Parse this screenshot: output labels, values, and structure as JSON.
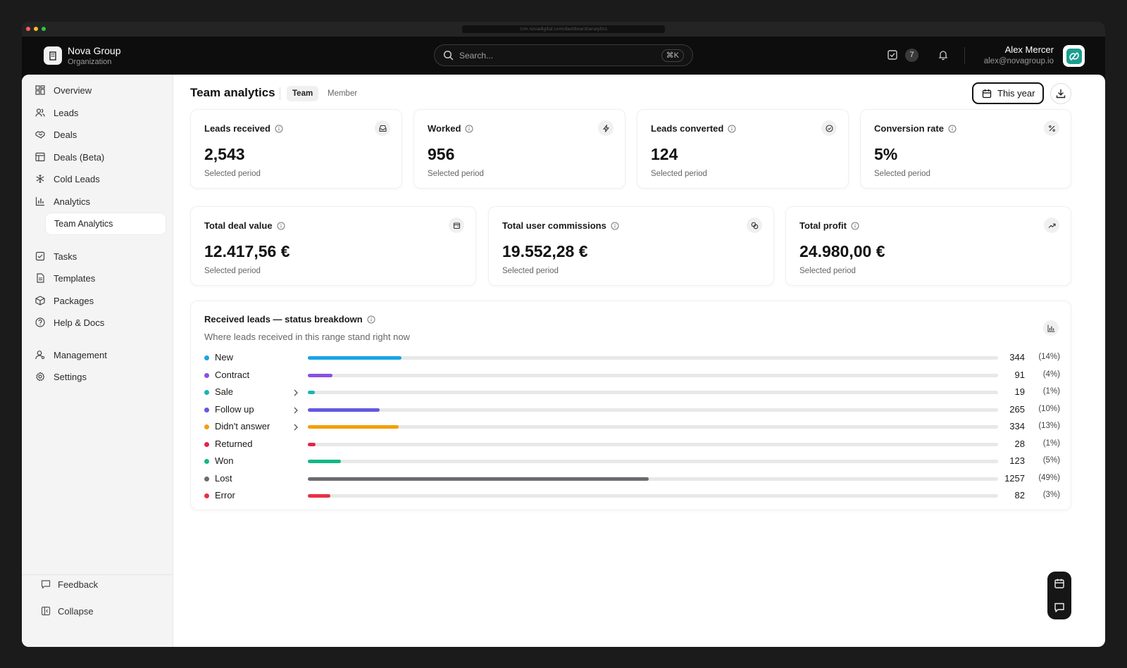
{
  "browser": {
    "url": "crm.novadigital.com/dashboard/analytics"
  },
  "org": {
    "name": "Nova Group",
    "subtitle": "Organization"
  },
  "search": {
    "placeholder": "Search...",
    "shortcut": "⌘K"
  },
  "header": {
    "task_count": "7"
  },
  "user": {
    "name": "Alex Mercer",
    "email": "alex@novagroup.io"
  },
  "sidebar": {
    "items": [
      {
        "label": "Overview",
        "icon": "grid-icon"
      },
      {
        "label": "Leads",
        "icon": "users-icon"
      },
      {
        "label": "Deals",
        "icon": "handshake-icon"
      },
      {
        "label": "Deals (Beta)",
        "icon": "table-icon"
      },
      {
        "label": "Cold Leads",
        "icon": "snowflake-icon"
      },
      {
        "label": "Analytics",
        "icon": "bar-chart-icon"
      },
      {
        "label": "Team Analytics",
        "icon": ""
      },
      {
        "label": "Tasks",
        "icon": "check-square-icon"
      },
      {
        "label": "Templates",
        "icon": "file-icon"
      },
      {
        "label": "Packages",
        "icon": "package-icon"
      },
      {
        "label": "Help & Docs",
        "icon": "help-circle-icon"
      },
      {
        "label": "Management",
        "icon": "user-cog-icon"
      },
      {
        "label": "Settings",
        "icon": "gear-icon"
      }
    ],
    "feedback_label": "Feedback",
    "collapse_label": "Collapse"
  },
  "page": {
    "title": "Team analytics",
    "tabs": [
      "Team",
      "Member"
    ],
    "active_tab": "Team",
    "period_label": "This year"
  },
  "kpis": [
    {
      "label": "Leads received",
      "value": "2,543",
      "sub": "Selected period",
      "icon": "inbox-icon"
    },
    {
      "label": "Worked",
      "value": "956",
      "sub": "Selected period",
      "icon": "bolt-icon"
    },
    {
      "label": "Leads converted",
      "value": "124",
      "sub": "Selected period",
      "icon": "check-circle-icon"
    },
    {
      "label": "Conversion rate",
      "value": "5%",
      "sub": "Selected period",
      "icon": "percent-icon"
    }
  ],
  "money": [
    {
      "label": "Total deal value",
      "value": "12.417,56 €",
      "sub": "Selected period",
      "icon": "wallet-icon"
    },
    {
      "label": "Total user commissions",
      "value": "19.552,28 €",
      "sub": "Selected period",
      "icon": "coins-icon"
    },
    {
      "label": "Total profit",
      "value": "24.980,00 €",
      "sub": "Selected period",
      "icon": "trending-up-icon"
    }
  ],
  "breakdown": {
    "title": "Received leads — status breakdown",
    "subtitle": "Where leads received in this range stand right now"
  },
  "chart_data": {
    "type": "bar",
    "categories": [
      "New",
      "Contract",
      "Sale",
      "Follow up",
      "Didn't answer",
      "Returned",
      "Won",
      "Lost",
      "Error"
    ],
    "values": [
      344,
      91,
      19,
      265,
      334,
      28,
      123,
      1257,
      82
    ],
    "percent_labels": [
      "(14%)",
      "(4%)",
      "(1%)",
      "(10%)",
      "(13%)",
      "(1%)",
      "(5%)",
      "(49%)",
      "(3%)"
    ],
    "expandable": [
      false,
      false,
      true,
      true,
      true,
      false,
      false,
      false,
      false
    ],
    "colors": [
      "#1aa3e6",
      "#8b4fe3",
      "#19b5b5",
      "#6558e0",
      "#f59e0b",
      "#e5244a",
      "#12b886",
      "#6b6b70",
      "#ea2f46"
    ],
    "total": 2543
  }
}
